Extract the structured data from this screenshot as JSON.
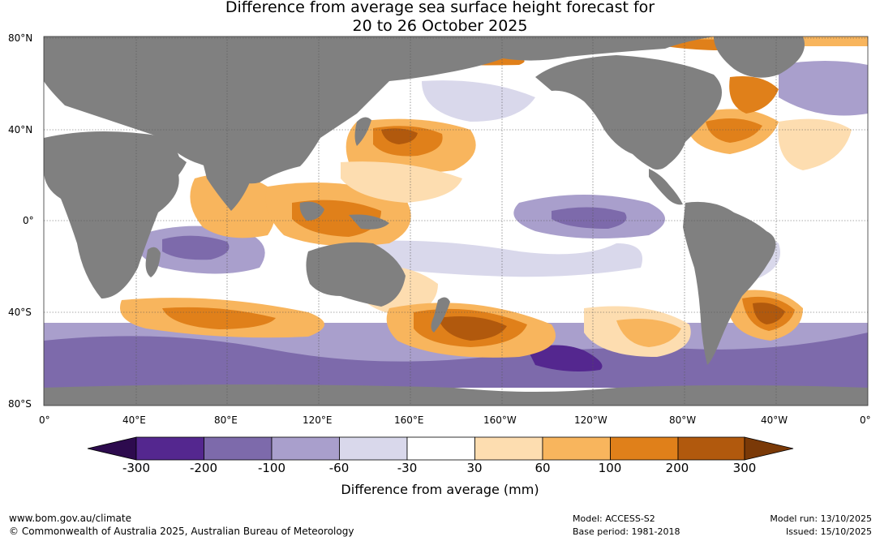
{
  "title": {
    "line1": "Difference from average sea surface height forecast for",
    "line2": "20 to 26 October 2025"
  },
  "lat_labels": [
    "80°N",
    "40°N",
    "0°",
    "40°S",
    "80°S"
  ],
  "lon_labels": [
    "0°",
    "40°E",
    "80°E",
    "120°E",
    "160°E",
    "160°W",
    "120°W",
    "80°W",
    "40°W",
    "0°"
  ],
  "colorbar": {
    "ticks": [
      "-300",
      "-200",
      "-100",
      "-60",
      "-30",
      "30",
      "60",
      "100",
      "200",
      "300"
    ],
    "title": "Difference from average (mm)",
    "colors": [
      "#2d0b4e",
      "#54278f",
      "#7d6aab",
      "#a99fcc",
      "#d9d8eb",
      "#ffffff",
      "#fdddb0",
      "#f8b55d",
      "#e0801a",
      "#b1590d",
      "#7a3907"
    ]
  },
  "colors": {
    "land": "#808080",
    "ice": "#7d6aab",
    "ocean_white": "#ffffff",
    "light_orange": "#fdddb0",
    "mid_orange": "#f8b55d",
    "orange": "#e0801a",
    "dark_orange": "#b1590d",
    "light_purple": "#d9d8eb",
    "mid_purple": "#a99fcc",
    "purple": "#7d6aab",
    "dark_purple": "#54278f"
  },
  "footer": {
    "website": "www.bom.gov.au/climate",
    "copyright": "© Commonwealth of Australia 2025, Australian Bureau of Meteorology",
    "model": "Model: ACCESS-S2",
    "base_period": "Base period: 1981-2018",
    "model_run": "Model run: 13/10/2025",
    "issued": "Issued: 15/10/2025"
  }
}
